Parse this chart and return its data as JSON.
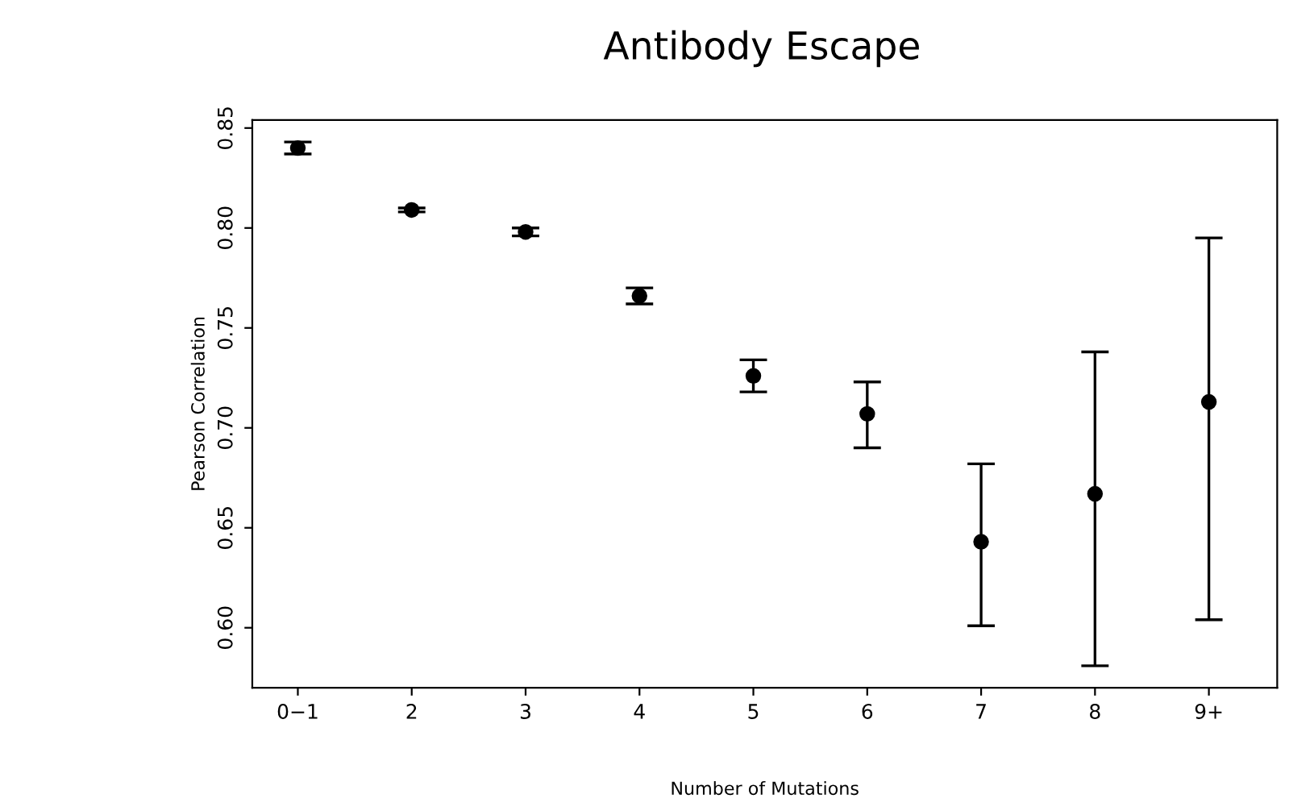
{
  "chart_data": {
    "type": "scatter",
    "title": "Antibody Escape",
    "xlabel": "Number of Mutations",
    "ylabel": "Pearson Correlation",
    "categories": [
      "0−1",
      "2",
      "3",
      "4",
      "5",
      "6",
      "7",
      "8",
      "9+"
    ],
    "values": [
      0.84,
      0.809,
      0.798,
      0.766,
      0.726,
      0.707,
      0.643,
      0.667,
      0.713
    ],
    "errors": [
      [
        0.837,
        0.843
      ],
      [
        0.808,
        0.81
      ],
      [
        0.796,
        0.8
      ],
      [
        0.762,
        0.77
      ],
      [
        0.718,
        0.734
      ],
      [
        0.69,
        0.723
      ],
      [
        0.601,
        0.682
      ],
      [
        0.581,
        0.738
      ],
      [
        0.604,
        0.795
      ]
    ],
    "color": "#000000",
    "ylim": [
      0.57,
      0.854
    ],
    "yticks": [
      {
        "value": 0.6,
        "label": "0.60"
      },
      0.65,
      {
        "value": 0.7,
        "label": "0.70"
      },
      0.75,
      {
        "value": 0.8,
        "label": "0.80"
      },
      0.85
    ],
    "marker": "circle",
    "grid": false,
    "legend": false
  }
}
